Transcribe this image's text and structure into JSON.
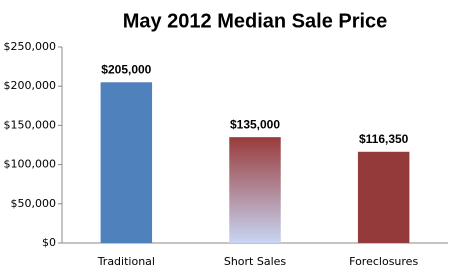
{
  "chart_data": {
    "type": "bar",
    "title": "May 2012 Median Sale Price",
    "categories": [
      "Traditional",
      "Short Sales",
      "Foreclosures"
    ],
    "values": [
      205000,
      135000,
      116350
    ],
    "value_labels": [
      "$205,000",
      "$135,000",
      "$116,350"
    ],
    "colors": [
      "#4f81bd",
      [
        "#993b3b",
        "#c8d5f3"
      ],
      "#953a3a"
    ],
    "ylim": [
      0,
      250000
    ],
    "yticks": [
      {
        "value": 0,
        "label": "$0"
      },
      {
        "value": 50000,
        "label": "$50,000"
      },
      {
        "value": 100000,
        "label": "$100,000"
      },
      {
        "value": 150000,
        "label": "$150,000"
      },
      {
        "value": 200000,
        "label": "$200,000"
      },
      {
        "value": 250000,
        "label": "$250,000"
      }
    ],
    "grid": false
  }
}
